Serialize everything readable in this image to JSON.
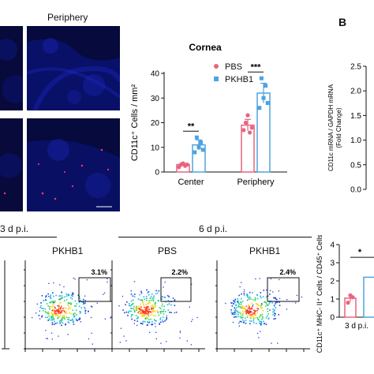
{
  "micrographs": {
    "column_label": "Periphery"
  },
  "panel_b": {
    "letter": "B",
    "ylabel_lines": [
      "CD11c mRNA / GAPDH mRNA",
      "(Fold Change)"
    ],
    "ticks": [
      "2.5",
      "2.0",
      "1.5",
      "1.0",
      "0.5",
      "0.0"
    ]
  },
  "chart_data": [
    {
      "type": "bar",
      "title": "Cornea",
      "ylabel": "CD11c⁺ Cells / mm²",
      "categories": [
        "Center",
        "Periphery"
      ],
      "series": [
        {
          "name": "PBS",
          "color": "#e8647f",
          "values": [
            3,
            19
          ],
          "points": [
            [
              2,
              3,
              3.5,
              2.5,
              3
            ],
            [
              17,
              20,
              23,
              16,
              18
            ]
          ]
        },
        {
          "name": "PKHB1",
          "color": "#4ea3e0",
          "values": [
            11,
            32
          ],
          "points": [
            [
              8,
              14,
              10,
              12,
              9
            ],
            [
              26,
              38,
              30,
              35,
              28
            ]
          ]
        }
      ],
      "ylim": [
        0,
        40
      ],
      "yticks": [
        "0",
        "10",
        "20",
        "30",
        "40"
      ],
      "significance": [
        "**",
        "***"
      ],
      "legend_position": "top-right"
    },
    {
      "type": "bar",
      "ylabel": "CD11c⁺ MHC- II⁺ Cells / CD45⁺ Cells (%)",
      "categories": [
        "3 d p.i."
      ],
      "series": [
        {
          "name": "PBS",
          "color": "#e8647f",
          "values": [
            1.05
          ],
          "points": [
            [
              0.8,
              1.2,
              1.1
            ]
          ]
        },
        {
          "name": "PKHB1",
          "color": "#4ea3e0",
          "values": [
            2.2
          ],
          "points": [
            [
              2.0
            ]
          ]
        }
      ],
      "ylim": [
        0,
        4
      ],
      "yticks": [
        "0",
        "1",
        "2",
        "3",
        "4"
      ],
      "significance": [
        "*"
      ]
    }
  ],
  "flow": {
    "left_group_label": "3 d p.i.",
    "right_group_label": "6 d p.i.",
    "panels": [
      {
        "label": "PKHB1",
        "percent": "3.1%"
      },
      {
        "label": "PBS",
        "percent": "2.2%"
      },
      {
        "label": "PKHB1",
        "percent": "2.4%"
      }
    ]
  }
}
